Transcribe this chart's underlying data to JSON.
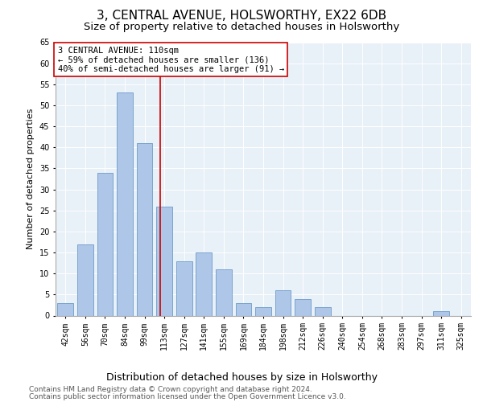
{
  "title": "3, CENTRAL AVENUE, HOLSWORTHY, EX22 6DB",
  "subtitle": "Size of property relative to detached houses in Holsworthy",
  "xlabel": "Distribution of detached houses by size in Holsworthy",
  "ylabel": "Number of detached properties",
  "categories": [
    "42sqm",
    "56sqm",
    "70sqm",
    "84sqm",
    "99sqm",
    "113sqm",
    "127sqm",
    "141sqm",
    "155sqm",
    "169sqm",
    "184sqm",
    "198sqm",
    "212sqm",
    "226sqm",
    "240sqm",
    "254sqm",
    "268sqm",
    "283sqm",
    "297sqm",
    "311sqm",
    "325sqm"
  ],
  "values": [
    3,
    17,
    34,
    53,
    41,
    26,
    13,
    15,
    11,
    3,
    2,
    6,
    4,
    2,
    0,
    0,
    0,
    0,
    0,
    1,
    0
  ],
  "bar_color": "#aec6e8",
  "bar_edge_color": "#5a8fc0",
  "bar_width": 0.8,
  "ylim": [
    0,
    65
  ],
  "yticks": [
    0,
    5,
    10,
    15,
    20,
    25,
    30,
    35,
    40,
    45,
    50,
    55,
    60,
    65
  ],
  "property_label": "3 CENTRAL AVENUE: 110sqm",
  "annotation_line1": "← 59% of detached houses are smaller (136)",
  "annotation_line2": "40% of semi-detached houses are larger (91) →",
  "vline_color": "#cc0000",
  "annotation_box_edge": "#cc0000",
  "footer_line1": "Contains HM Land Registry data © Crown copyright and database right 2024.",
  "footer_line2": "Contains public sector information licensed under the Open Government Licence v3.0.",
  "plot_bg_color": "#e8f0f8",
  "title_fontsize": 11,
  "subtitle_fontsize": 9.5,
  "xlabel_fontsize": 9,
  "ylabel_fontsize": 8,
  "tick_fontsize": 7,
  "annotation_fontsize": 7.5,
  "footer_fontsize": 6.5
}
